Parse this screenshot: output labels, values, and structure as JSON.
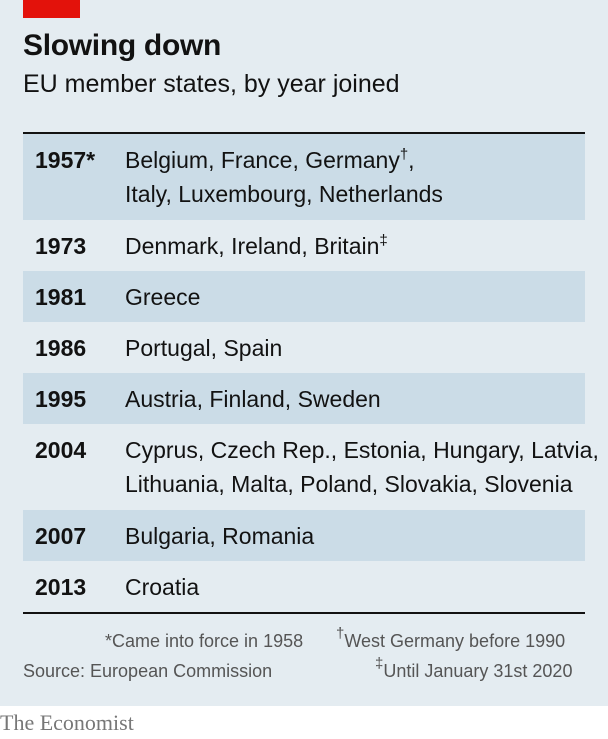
{
  "header": {
    "title": "Slowing down",
    "subtitle": "EU member states, by year joined"
  },
  "colors": {
    "accent": "#e3120b",
    "panel_background": "#e4ecf1",
    "row_shading": "#cbdce7",
    "text": "#121212"
  },
  "table": {
    "rows": [
      {
        "year": "1957*",
        "lines": [
          "Belgium, France, Germany",
          "Italy, Luxembourg, Netherlands"
        ],
        "line1_marker": "†",
        "line1_suffix": ",",
        "shaded": true
      },
      {
        "year": "1973",
        "lines": [
          "Denmark, Ireland, Britain"
        ],
        "line1_marker": "‡",
        "shaded": false
      },
      {
        "year": "1981",
        "lines": [
          "Greece"
        ],
        "shaded": true
      },
      {
        "year": "1986",
        "lines": [
          "Portugal, Spain"
        ],
        "shaded": false
      },
      {
        "year": "1995",
        "lines": [
          "Austria, Finland, Sweden"
        ],
        "shaded": true
      },
      {
        "year": "2004",
        "lines": [
          "Cyprus, Czech Rep., Estonia, Hungary, Latvia,",
          "Lithuania, Malta, Poland, Slovakia, Slovenia"
        ],
        "shaded": false
      },
      {
        "year": "2007",
        "lines": [
          "Bulgaria, Romania"
        ],
        "shaded": true
      },
      {
        "year": "2013",
        "lines": [
          "Croatia"
        ],
        "shaded": false
      }
    ]
  },
  "footnotes": {
    "asterisk": "*Came into force in 1958",
    "dagger_mark": "†",
    "dagger": "West Germany before 1990",
    "double_dagger_mark": "‡",
    "double_dagger": "Until January 31st 2020",
    "source": "Source: European Commission"
  },
  "brand": {
    "logo_text": "The Economist"
  }
}
